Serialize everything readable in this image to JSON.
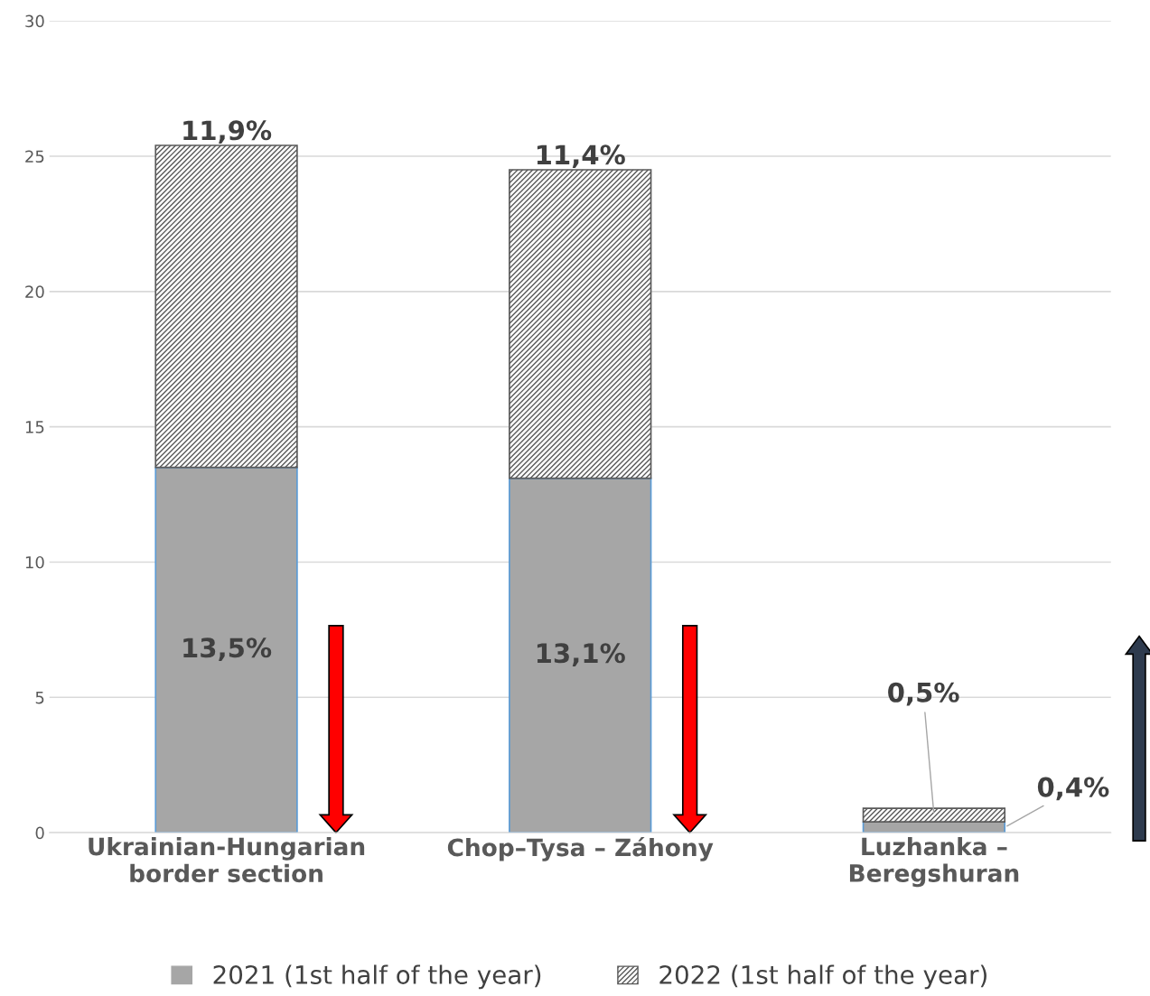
{
  "chart_data": {
    "type": "bar",
    "stacked": true,
    "categories": [
      "Ukrainian-Hungarian\nborder section",
      "Chop–Tysa – Záhony",
      "Luzhanka –\nBeregshuran"
    ],
    "series": [
      {
        "name": "2021 (1st half of the year)",
        "color": "#a6a6a6",
        "values": [
          13.5,
          13.1,
          0.4
        ],
        "value_labels": [
          "13,5%",
          "13,1%",
          "0,4%"
        ]
      },
      {
        "name": "2022 (1st half of the year)",
        "color": "#595959",
        "values": [
          11.9,
          11.4,
          0.5
        ],
        "value_labels": [
          "11,9%",
          "11,4%",
          "0,5%"
        ]
      }
    ],
    "ylim": [
      0,
      30
    ],
    "yticks": [
      0,
      5,
      10,
      15,
      20,
      25,
      30
    ],
    "grid": "y",
    "legend": "bottom"
  }
}
